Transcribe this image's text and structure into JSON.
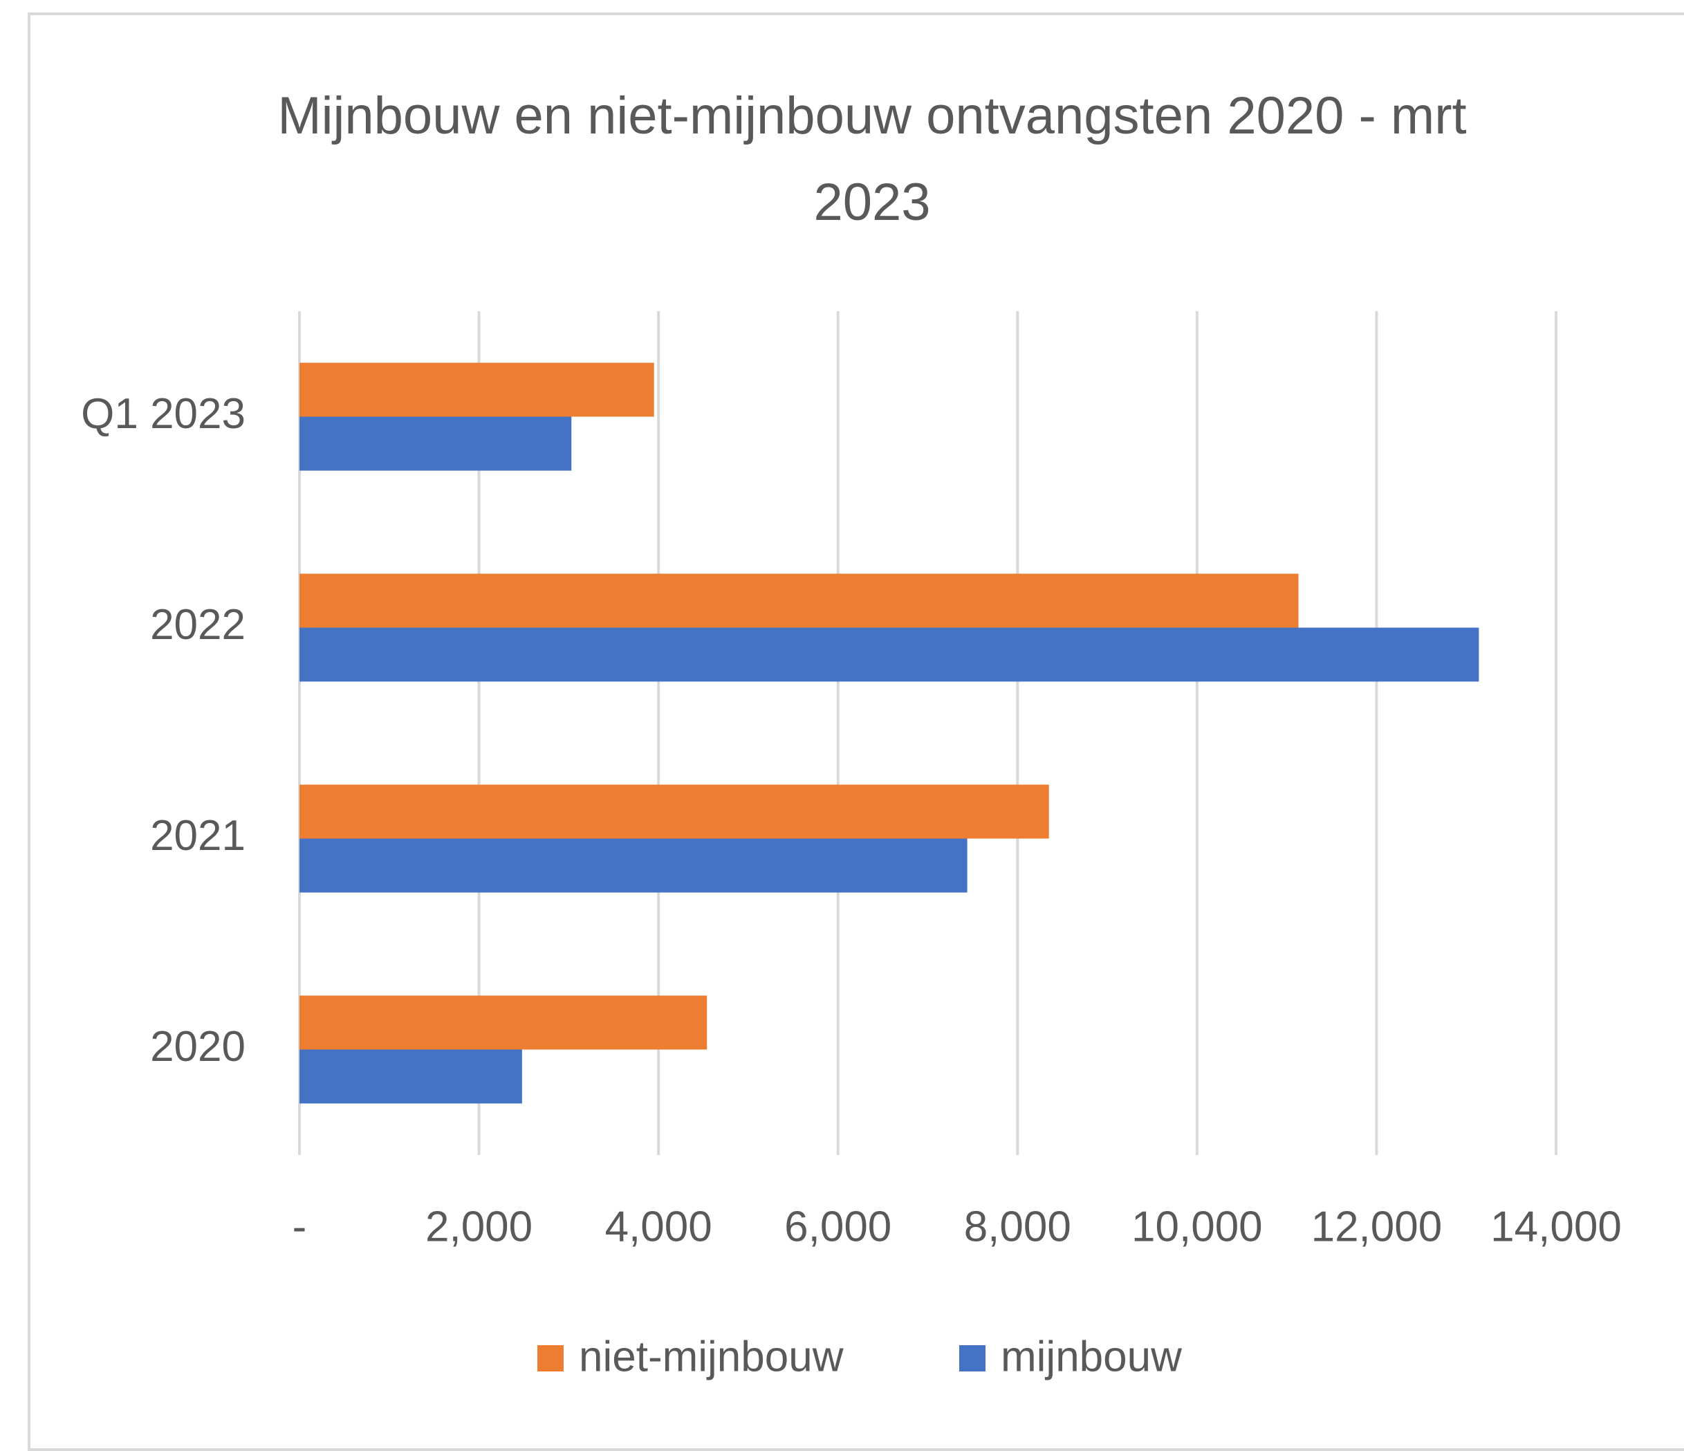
{
  "chart_data": {
    "type": "bar",
    "orientation": "horizontal",
    "title": "Mijnbouw en niet-mijnbouw ontvangsten 2020 - mrt 2023",
    "categories": [
      "2020",
      "2021",
      "2022",
      "Q1 2023"
    ],
    "series": [
      {
        "name": "niet-mijnbouw",
        "color": "#ed7d31",
        "values": [
          4540,
          8350,
          11130,
          3950
        ]
      },
      {
        "name": "mijnbouw",
        "color": "#4472c4",
        "values": [
          2480,
          7440,
          13140,
          3030
        ]
      }
    ],
    "xlim": [
      0,
      14000
    ],
    "xticks": [
      {
        "value": 0,
        "label": "-"
      },
      {
        "value": 2000,
        "label": "2,000"
      },
      {
        "value": 4000,
        "label": "4,000"
      },
      {
        "value": 6000,
        "label": "6,000"
      },
      {
        "value": 8000,
        "label": "8,000"
      },
      {
        "value": 10000,
        "label": "10,000"
      },
      {
        "value": 12000,
        "label": "12,000"
      },
      {
        "value": 14000,
        "label": "14,000"
      }
    ],
    "grid": true,
    "legend": "bottom"
  }
}
